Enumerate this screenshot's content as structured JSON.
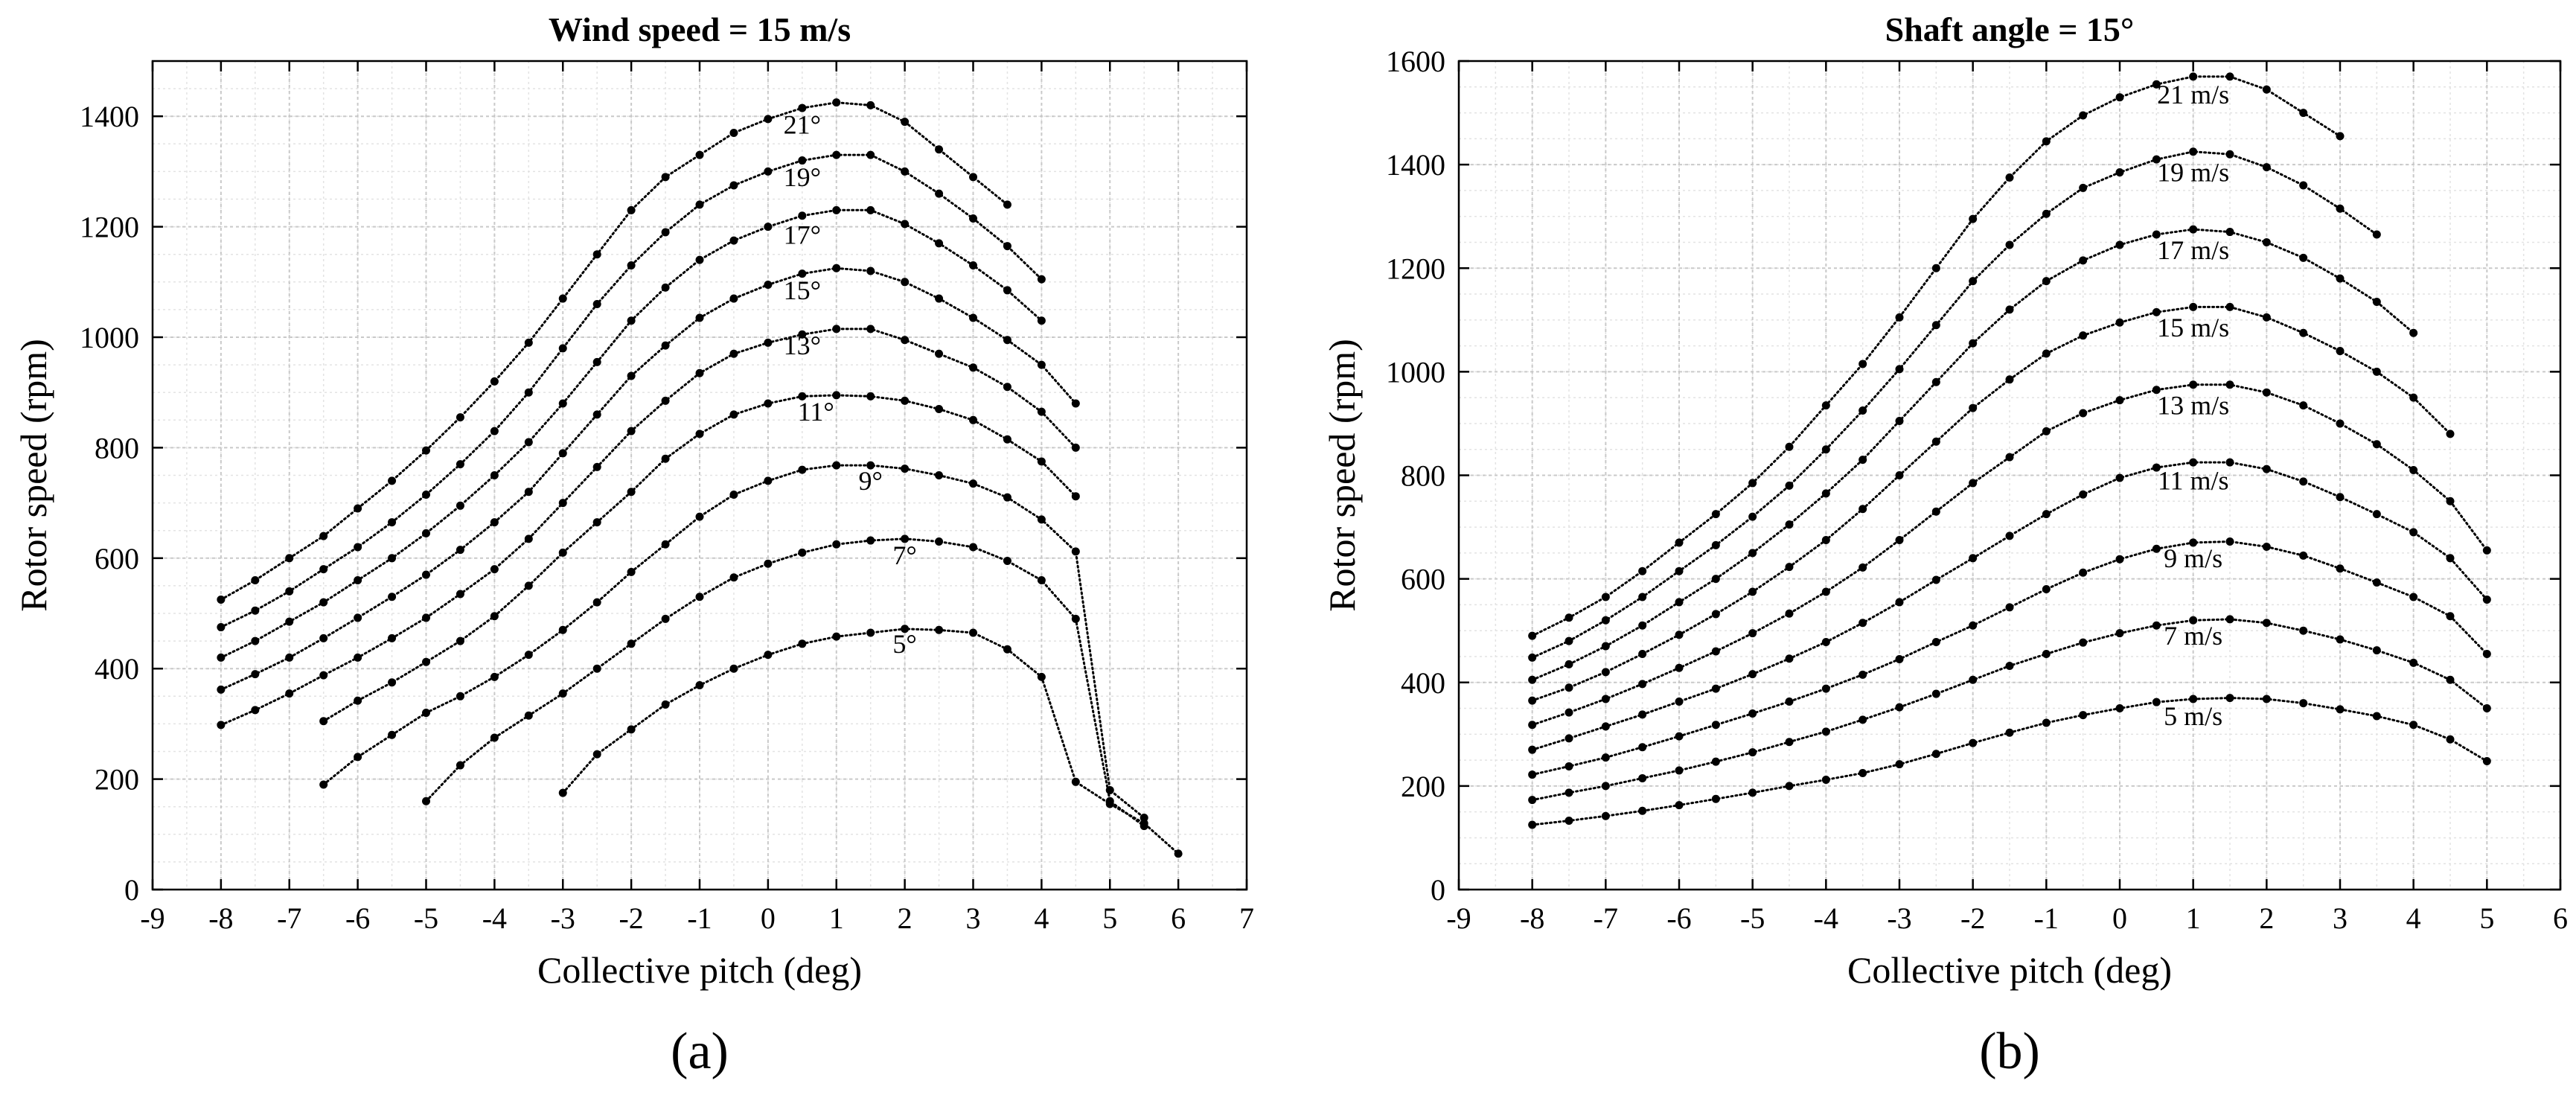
{
  "chart_data": [
    {
      "type": "line",
      "title": "Wind speed = 15 m/s",
      "panel_label": "(a)",
      "xlabel": "Collective pitch (deg)",
      "ylabel": "Rotor speed (rpm)",
      "xlim": [
        -9,
        7
      ],
      "ylim": [
        0,
        1500
      ],
      "xticks": [
        -9,
        -8,
        -7,
        -6,
        -5,
        -4,
        -3,
        -2,
        -1,
        0,
        1,
        2,
        3,
        4,
        5,
        6,
        7
      ],
      "yticks": [
        0,
        200,
        400,
        600,
        800,
        1000,
        1200,
        1400
      ],
      "grid": true,
      "series": [
        {
          "name": "21°",
          "label_at": [
            0.5,
            1385
          ],
          "x": [
            -8,
            -7.5,
            -7,
            -6.5,
            -6,
            -5.5,
            -5,
            -4.5,
            -4,
            -3.5,
            -3,
            -2.5,
            -2,
            -1.5,
            -1,
            -0.5,
            0,
            0.5,
            1,
            1.5,
            2,
            2.5,
            3,
            3.5
          ],
          "y": [
            525,
            560,
            600,
            640,
            690,
            740,
            795,
            855,
            920,
            990,
            1070,
            1150,
            1230,
            1290,
            1330,
            1370,
            1395,
            1415,
            1425,
            1420,
            1390,
            1340,
            1290,
            1240
          ]
        },
        {
          "name": "19°",
          "label_at": [
            0.5,
            1290
          ],
          "x": [
            -8,
            -7.5,
            -7,
            -6.5,
            -6,
            -5.5,
            -5,
            -4.5,
            -4,
            -3.5,
            -3,
            -2.5,
            -2,
            -1.5,
            -1,
            -0.5,
            0,
            0.5,
            1,
            1.5,
            2,
            2.5,
            3,
            3.5,
            4
          ],
          "y": [
            475,
            505,
            540,
            580,
            620,
            665,
            715,
            770,
            830,
            900,
            980,
            1060,
            1130,
            1190,
            1240,
            1275,
            1300,
            1320,
            1330,
            1330,
            1300,
            1260,
            1215,
            1165,
            1105
          ]
        },
        {
          "name": "17°",
          "label_at": [
            0.5,
            1185
          ],
          "x": [
            -8,
            -7.5,
            -7,
            -6.5,
            -6,
            -5.5,
            -5,
            -4.5,
            -4,
            -3.5,
            -3,
            -2.5,
            -2,
            -1.5,
            -1,
            -0.5,
            0,
            0.5,
            1,
            1.5,
            2,
            2.5,
            3,
            3.5,
            4
          ],
          "y": [
            420,
            450,
            485,
            520,
            560,
            600,
            645,
            695,
            750,
            810,
            880,
            955,
            1030,
            1090,
            1140,
            1175,
            1200,
            1220,
            1230,
            1230,
            1205,
            1170,
            1130,
            1085,
            1030
          ]
        },
        {
          "name": "15°",
          "label_at": [
            0.5,
            1085
          ],
          "x": [
            -8,
            -7.5,
            -7,
            -6.5,
            -6,
            -5.5,
            -5,
            -4.5,
            -4,
            -3.5,
            -3,
            -2.5,
            -2,
            -1.5,
            -1,
            -0.5,
            0,
            0.5,
            1,
            1.5,
            2,
            2.5,
            3,
            3.5,
            4,
            4.5
          ],
          "y": [
            362,
            390,
            420,
            455,
            492,
            530,
            570,
            615,
            665,
            720,
            790,
            860,
            930,
            985,
            1035,
            1070,
            1095,
            1115,
            1125,
            1120,
            1100,
            1070,
            1035,
            995,
            950,
            880
          ]
        },
        {
          "name": "13°",
          "label_at": [
            0.5,
            985
          ],
          "x": [
            -8,
            -7.5,
            -7,
            -6.5,
            -6,
            -5.5,
            -5,
            -4.5,
            -4,
            -3.5,
            -3,
            -2.5,
            -2,
            -1.5,
            -1,
            -0.5,
            0,
            0.5,
            1,
            1.5,
            2,
            2.5,
            3,
            3.5,
            4,
            4.5
          ],
          "y": [
            298,
            325,
            355,
            388,
            420,
            455,
            492,
            535,
            580,
            635,
            700,
            765,
            830,
            885,
            935,
            970,
            990,
            1005,
            1015,
            1015,
            995,
            970,
            945,
            910,
            865,
            800
          ]
        },
        {
          "name": "11°",
          "label_at": [
            0.7,
            865
          ],
          "x": [
            -6.5,
            -6,
            -5.5,
            -5,
            -4.5,
            -4,
            -3.5,
            -3,
            -2.5,
            -2,
            -1.5,
            -1,
            -0.5,
            0,
            0.5,
            1,
            1.5,
            2,
            2.5,
            3,
            3.5,
            4,
            4.5
          ],
          "y": [
            305,
            342,
            375,
            412,
            450,
            495,
            550,
            610,
            665,
            720,
            780,
            825,
            860,
            880,
            893,
            895,
            893,
            885,
            870,
            850,
            815,
            775,
            712
          ]
        },
        {
          "name": "9°",
          "label_at": [
            1.5,
            740
          ],
          "x": [
            -6.5,
            -6,
            -5.5,
            -5,
            -4.5,
            -4,
            -3.5,
            -3,
            -2.5,
            -2,
            -1.5,
            -1,
            -0.5,
            0,
            0.5,
            1,
            1.5,
            2,
            2.5,
            3,
            3.5,
            4,
            4.5,
            5,
            5.5
          ],
          "y": [
            190,
            240,
            280,
            320,
            350,
            385,
            425,
            470,
            520,
            575,
            625,
            675,
            715,
            740,
            760,
            768,
            768,
            762,
            750,
            735,
            710,
            670,
            612,
            180,
            130
          ]
        },
        {
          "name": "7°",
          "label_at": [
            2,
            605
          ],
          "x": [
            -5,
            -4.5,
            -4,
            -3.5,
            -3,
            -2.5,
            -2,
            -1.5,
            -1,
            -0.5,
            0,
            0.5,
            1,
            1.5,
            2,
            2.5,
            3,
            3.5,
            4,
            4.5,
            5,
            5.5
          ],
          "y": [
            160,
            225,
            275,
            315,
            355,
            400,
            445,
            490,
            530,
            565,
            590,
            610,
            625,
            632,
            635,
            630,
            620,
            595,
            560,
            490,
            160,
            115
          ]
        },
        {
          "name": "5°",
          "label_at": [
            2,
            445
          ],
          "x": [
            -3,
            -2.5,
            -2,
            -1.5,
            -1,
            -0.5,
            0,
            0.5,
            1,
            1.5,
            2,
            2.5,
            3,
            3.5,
            4,
            4.5,
            5,
            5.5,
            6
          ],
          "y": [
            175,
            245,
            290,
            335,
            370,
            400,
            425,
            445,
            458,
            465,
            472,
            470,
            465,
            435,
            385,
            195,
            155,
            120,
            65
          ]
        }
      ]
    },
    {
      "type": "line",
      "title": "Shaft angle = 15°",
      "panel_label": "(b)",
      "xlabel": "Collective pitch (deg)",
      "ylabel": "Rotor speed (rpm)",
      "xlim": [
        -9,
        6
      ],
      "ylim": [
        0,
        1600
      ],
      "xticks": [
        -9,
        -8,
        -7,
        -6,
        -5,
        -4,
        -3,
        -2,
        -1,
        0,
        1,
        2,
        3,
        4,
        5,
        6
      ],
      "yticks": [
        0,
        200,
        400,
        600,
        800,
        1000,
        1200,
        1400,
        1600
      ],
      "grid": true,
      "series": [
        {
          "name": "21 m/s",
          "label_at": [
            1,
            1535
          ],
          "x": [
            -8,
            -7.5,
            -7,
            -6.5,
            -6,
            -5.5,
            -5,
            -4.5,
            -4,
            -3.5,
            -3,
            -2.5,
            -2,
            -1.5,
            -1,
            -0.5,
            0,
            0.5,
            1,
            1.5,
            2,
            2.5,
            3
          ],
          "y": [
            490,
            525,
            565,
            615,
            670,
            725,
            785,
            855,
            935,
            1015,
            1105,
            1200,
            1295,
            1375,
            1445,
            1495,
            1530,
            1555,
            1570,
            1570,
            1545,
            1500,
            1455
          ]
        },
        {
          "name": "19 m/s",
          "label_at": [
            1,
            1385
          ],
          "x": [
            -8,
            -7.5,
            -7,
            -6.5,
            -6,
            -5.5,
            -5,
            -4.5,
            -4,
            -3.5,
            -3,
            -2.5,
            -2,
            -1.5,
            -1,
            -0.5,
            0,
            0.5,
            1,
            1.5,
            2,
            2.5,
            3,
            3.5
          ],
          "y": [
            448,
            480,
            520,
            565,
            615,
            665,
            720,
            780,
            850,
            925,
            1005,
            1090,
            1175,
            1245,
            1305,
            1355,
            1385,
            1410,
            1425,
            1420,
            1395,
            1360,
            1315,
            1265
          ]
        },
        {
          "name": "17 m/s",
          "label_at": [
            1,
            1235
          ],
          "x": [
            -8,
            -7.5,
            -7,
            -6.5,
            -6,
            -5.5,
            -5,
            -4.5,
            -4,
            -3.5,
            -3,
            -2.5,
            -2,
            -1.5,
            -1,
            -0.5,
            0,
            0.5,
            1,
            1.5,
            2,
            2.5,
            3,
            3.5,
            4
          ],
          "y": [
            405,
            435,
            470,
            510,
            555,
            600,
            650,
            705,
            765,
            830,
            905,
            980,
            1055,
            1120,
            1175,
            1215,
            1245,
            1265,
            1275,
            1270,
            1250,
            1220,
            1180,
            1135,
            1075
          ]
        },
        {
          "name": "15 m/s",
          "label_at": [
            1,
            1085
          ],
          "x": [
            -8,
            -7.5,
            -7,
            -6.5,
            -6,
            -5.5,
            -5,
            -4.5,
            -4,
            -3.5,
            -3,
            -2.5,
            -2,
            -1.5,
            -1,
            -0.5,
            0,
            0.5,
            1,
            1.5,
            2,
            2.5,
            3,
            3.5,
            4,
            4.5
          ],
          "y": [
            365,
            390,
            420,
            455,
            492,
            532,
            575,
            623,
            675,
            735,
            800,
            865,
            930,
            985,
            1035,
            1070,
            1095,
            1115,
            1125,
            1125,
            1105,
            1075,
            1040,
            1000,
            950,
            880
          ]
        },
        {
          "name": "13 m/s",
          "label_at": [
            1,
            935
          ],
          "x": [
            -8,
            -7.5,
            -7,
            -6.5,
            -6,
            -5.5,
            -5,
            -4.5,
            -4,
            -3.5,
            -3,
            -2.5,
            -2,
            -1.5,
            -1,
            -0.5,
            0,
            0.5,
            1,
            1.5,
            2,
            2.5,
            3,
            3.5,
            4,
            4.5,
            5
          ],
          "y": [
            318,
            342,
            368,
            397,
            428,
            460,
            495,
            533,
            575,
            622,
            675,
            730,
            785,
            835,
            885,
            920,
            945,
            965,
            975,
            975,
            960,
            935,
            900,
            860,
            810,
            750,
            655
          ]
        },
        {
          "name": "11 m/s",
          "label_at": [
            1,
            790
          ],
          "x": [
            -8,
            -7.5,
            -7,
            -6.5,
            -6,
            -5.5,
            -5,
            -4.5,
            -4,
            -3.5,
            -3,
            -2.5,
            -2,
            -1.5,
            -1,
            -0.5,
            0,
            0.5,
            1,
            1.5,
            2,
            2.5,
            3,
            3.5,
            4,
            4.5,
            5
          ],
          "y": [
            270,
            292,
            315,
            338,
            363,
            388,
            416,
            446,
            478,
            515,
            555,
            598,
            640,
            683,
            725,
            763,
            795,
            815,
            825,
            825,
            812,
            788,
            758,
            725,
            690,
            640,
            560
          ]
        },
        {
          "name": "9 m/s",
          "label_at": [
            1,
            640
          ],
          "x": [
            -8,
            -7.5,
            -7,
            -6.5,
            -6,
            -5.5,
            -5,
            -4.5,
            -4,
            -3.5,
            -3,
            -2.5,
            -2,
            -1.5,
            -1,
            -0.5,
            0,
            0.5,
            1,
            1.5,
            2,
            2.5,
            3,
            3.5,
            4,
            4.5,
            5
          ],
          "y": [
            222,
            238,
            255,
            275,
            296,
            318,
            340,
            363,
            388,
            415,
            445,
            478,
            510,
            545,
            580,
            612,
            638,
            658,
            670,
            672,
            662,
            645,
            620,
            593,
            565,
            528,
            455
          ]
        },
        {
          "name": "7 m/s",
          "label_at": [
            1,
            490
          ],
          "x": [
            -8,
            -7.5,
            -7,
            -6.5,
            -6,
            -5.5,
            -5,
            -4.5,
            -4,
            -3.5,
            -3,
            -2.5,
            -2,
            -1.5,
            -1,
            -0.5,
            0,
            0.5,
            1,
            1.5,
            2,
            2.5,
            3,
            3.5,
            4,
            4.5,
            5
          ],
          "y": [
            173,
            187,
            200,
            215,
            230,
            247,
            265,
            285,
            305,
            328,
            352,
            378,
            405,
            432,
            455,
            477,
            495,
            510,
            520,
            522,
            515,
            500,
            483,
            462,
            438,
            405,
            350
          ]
        },
        {
          "name": "5 m/s",
          "label_at": [
            1,
            335
          ],
          "x": [
            -8,
            -7.5,
            -7,
            -6.5,
            -6,
            -5.5,
            -5,
            -4.5,
            -4,
            -3.5,
            -3,
            -2.5,
            -2,
            -1.5,
            -1,
            -0.5,
            0,
            0.5,
            1,
            1.5,
            2,
            2.5,
            3,
            3.5,
            4,
            4.5,
            5
          ],
          "y": [
            125,
            133,
            142,
            152,
            163,
            175,
            187,
            200,
            212,
            225,
            242,
            262,
            283,
            303,
            322,
            337,
            350,
            362,
            368,
            370,
            368,
            360,
            348,
            335,
            318,
            290,
            248
          ]
        }
      ]
    }
  ]
}
